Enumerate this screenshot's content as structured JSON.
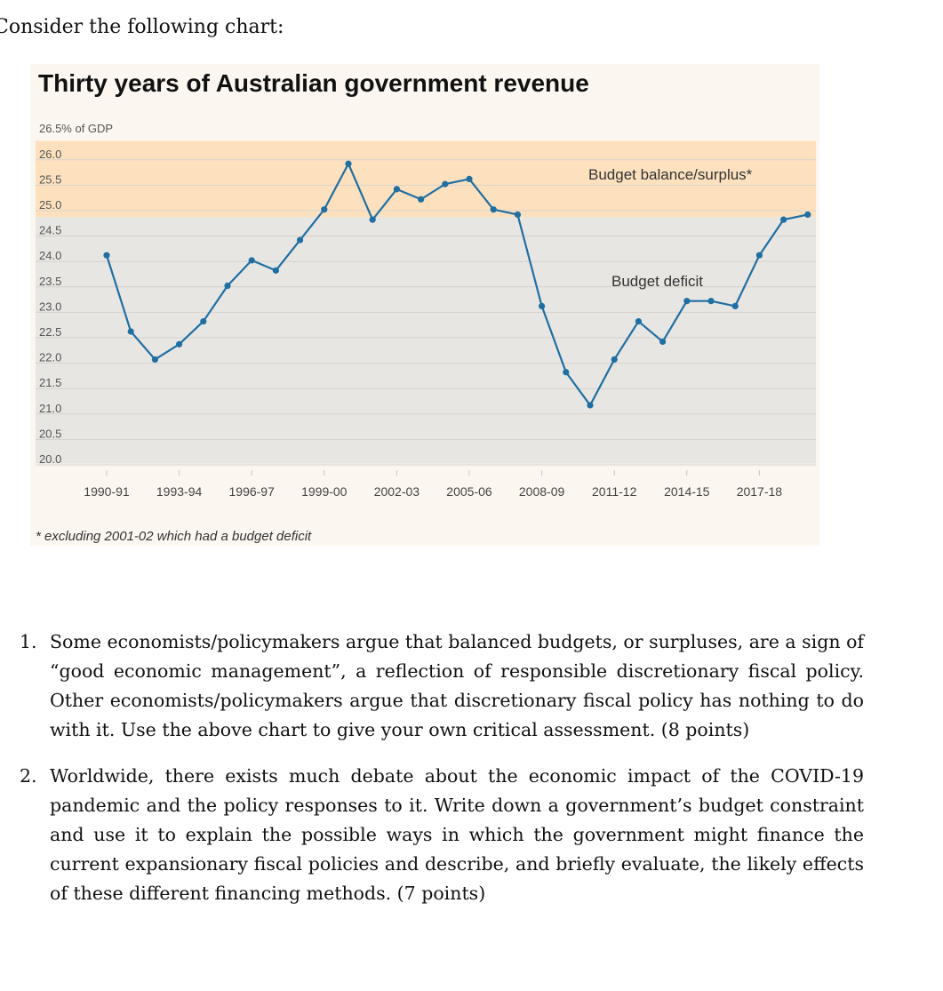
{
  "intro": "Consider the following chart:",
  "chart_data": {
    "type": "line",
    "title": "Thirty years of Australian government revenue",
    "ylabel": "26.5% of GDP",
    "ylim": [
      20.0,
      26.5
    ],
    "yticks": [
      "26.0",
      "25.5",
      "25.0",
      "24.5",
      "24.0",
      "23.5",
      "23.0",
      "22.5",
      "22.0",
      "21.5",
      "21.0",
      "20.5",
      "20.0"
    ],
    "xtick_labels": [
      "1990-91",
      "1993-94",
      "1996-97",
      "1999-00",
      "2002-03",
      "2005-06",
      "2008-09",
      "2011-12",
      "2014-15",
      "2017-18"
    ],
    "x": [
      "1990-91",
      "1991-92",
      "1992-93",
      "1993-94",
      "1994-95",
      "1995-96",
      "1996-97",
      "1997-98",
      "1998-99",
      "1999-00",
      "2000-01",
      "2001-02",
      "2002-03",
      "2003-04",
      "2004-05",
      "2005-06",
      "2006-07",
      "2007-08",
      "2008-09",
      "2009-10",
      "2010-11",
      "2011-12",
      "2012-13",
      "2013-14",
      "2014-15",
      "2015-16",
      "2016-17",
      "2017-18",
      "2018-19",
      "2019-20"
    ],
    "series": [
      {
        "name": "Revenue (% of GDP)",
        "values": [
          24.0,
          22.5,
          21.95,
          22.25,
          22.7,
          23.4,
          23.9,
          23.7,
          24.3,
          24.9,
          25.8,
          24.7,
          25.3,
          25.1,
          25.4,
          25.5,
          24.9,
          24.8,
          23.0,
          21.7,
          21.05,
          21.95,
          22.7,
          22.3,
          23.1,
          23.1,
          23.0,
          24.0,
          24.7,
          24.8
        ]
      }
    ],
    "regions": [
      {
        "label": "Budget balance/surplus*",
        "from": 24.5,
        "to": 26.5,
        "color": "#fde1bf"
      },
      {
        "label": "Budget deficit",
        "from": 20.0,
        "to": 24.5,
        "color": "#e8e6e3"
      }
    ],
    "line_color": "#1f6fa3",
    "footnote": "* excluding 2001-02 which had a budget deficit"
  },
  "questions": [
    {
      "number": "1.",
      "text": "Some economists/policymakers argue that balanced budgets, or surpluses, are a sign of “good economic management”, a reflection of responsible discretionary fiscal policy. Other economists/policymakers argue that discretionary fiscal policy has nothing to do with it. Use the above chart to give your own critical assessment. (8 points)"
    },
    {
      "number": "2.",
      "text": "Worldwide, there exists much debate about the economic impact of the COVID-19 pandemic and the policy responses to it. Write down a government’s budget constraint and use it to explain the possible ways in which the government might finance the current expansionary fiscal policies and describe, and briefly evaluate, the likely effects of these different financing methods. (7 points)"
    }
  ]
}
